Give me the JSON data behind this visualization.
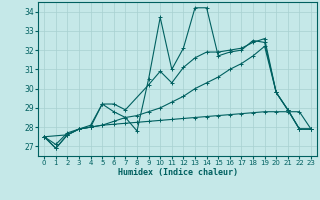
{
  "title": "",
  "xlabel": "Humidex (Indice chaleur)",
  "xlim": [
    -0.5,
    23.5
  ],
  "ylim": [
    26.5,
    34.5
  ],
  "yticks": [
    27,
    28,
    29,
    30,
    31,
    32,
    33,
    34
  ],
  "xticks": [
    0,
    1,
    2,
    3,
    4,
    5,
    6,
    7,
    8,
    9,
    10,
    11,
    12,
    13,
    14,
    15,
    16,
    17,
    18,
    19,
    20,
    21,
    22,
    23
  ],
  "background_color": "#c5e8e8",
  "grid_color": "#a8d0d0",
  "line_color": "#006060",
  "lines": [
    {
      "x": [
        0,
        1,
        2,
        3,
        4,
        5,
        6,
        7,
        8,
        9,
        10,
        11,
        12,
        13,
        14,
        15,
        16,
        17,
        18,
        19,
        20,
        21,
        22,
        23
      ],
      "y": [
        27.5,
        26.9,
        27.6,
        27.9,
        28.0,
        29.2,
        28.8,
        28.5,
        27.8,
        30.5,
        33.7,
        31.0,
        32.1,
        34.2,
        34.2,
        31.7,
        31.9,
        32.0,
        32.5,
        32.4,
        29.8,
        28.9,
        27.9,
        27.9
      ]
    },
    {
      "x": [
        0,
        1,
        2,
        3,
        4,
        5,
        6,
        7,
        8,
        9,
        10,
        11,
        12,
        13,
        14,
        15,
        16,
        17,
        18,
        19,
        20,
        21,
        22,
        23
      ],
      "y": [
        27.5,
        26.9,
        27.6,
        27.9,
        28.0,
        28.1,
        28.3,
        28.5,
        28.6,
        28.8,
        29.0,
        29.3,
        29.6,
        30.0,
        30.3,
        30.6,
        31.0,
        31.3,
        31.7,
        32.2,
        29.8,
        28.9,
        27.9,
        27.9
      ]
    },
    {
      "x": [
        0,
        2,
        3,
        4,
        5,
        6,
        7,
        9,
        10,
        11,
        12,
        13,
        14,
        15,
        16,
        17,
        18,
        19,
        20,
        21,
        22,
        23
      ],
      "y": [
        27.5,
        27.6,
        27.9,
        28.1,
        29.2,
        29.2,
        28.9,
        30.2,
        30.9,
        30.3,
        31.1,
        31.6,
        31.9,
        31.9,
        32.0,
        32.1,
        32.4,
        32.6,
        29.8,
        28.9,
        27.9,
        27.9
      ]
    },
    {
      "x": [
        0,
        1,
        2,
        3,
        4,
        5,
        6,
        7,
        8,
        9,
        10,
        11,
        12,
        13,
        14,
        15,
        16,
        17,
        18,
        19,
        20,
        21,
        22,
        23
      ],
      "y": [
        27.5,
        27.1,
        27.7,
        27.9,
        28.0,
        28.1,
        28.15,
        28.2,
        28.25,
        28.3,
        28.35,
        28.4,
        28.45,
        28.5,
        28.55,
        28.6,
        28.65,
        28.7,
        28.75,
        28.8,
        28.8,
        28.8,
        28.8,
        27.9
      ]
    }
  ]
}
